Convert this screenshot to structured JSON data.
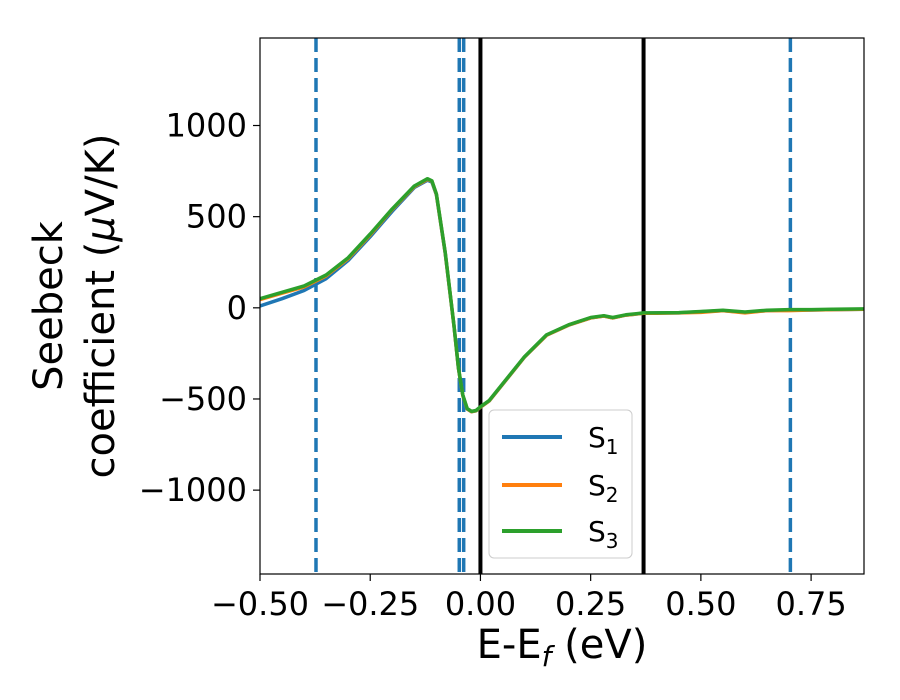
{
  "chart_data": {
    "type": "line",
    "title": "",
    "xlabel": {
      "main": "E-E",
      "sub": "f",
      "tail": " (eV)"
    },
    "ylabel": {
      "line1": "Seebeck",
      "line2a": "coefficient  (",
      "mu": "μ",
      "line2b": "V/K)"
    },
    "xlim": [
      -0.5,
      0.87
    ],
    "ylim": [
      -1460,
      1480
    ],
    "xticks": [
      {
        "value": -0.5,
        "label": "−0.50"
      },
      {
        "value": -0.25,
        "label": "−0.25"
      },
      {
        "value": 0.0,
        "label": "0.00"
      },
      {
        "value": 0.25,
        "label": "0.25"
      },
      {
        "value": 0.5,
        "label": "0.50"
      },
      {
        "value": 0.75,
        "label": "0.75"
      }
    ],
    "yticks": [
      {
        "value": 1000,
        "label": "1000"
      },
      {
        "value": 500,
        "label": "500"
      },
      {
        "value": 0,
        "label": "0"
      },
      {
        "value": -500,
        "label": "−500"
      },
      {
        "value": -1000,
        "label": "−1000"
      }
    ],
    "grid": false,
    "legend_position": "lower-center",
    "vlines_dashed": {
      "x": [
        -0.373,
        -0.048,
        -0.038,
        0.703
      ],
      "color": "#1f77b4"
    },
    "vlines_solid": {
      "x": [
        0.0,
        0.37
      ],
      "color": "#000000"
    },
    "series": [
      {
        "name": "S",
        "sub": "1",
        "color": "#1f77b4",
        "x": [
          -0.5,
          -0.45,
          -0.4,
          -0.35,
          -0.3,
          -0.25,
          -0.2,
          -0.15,
          -0.12,
          -0.11,
          -0.1,
          -0.08,
          -0.06,
          -0.05,
          -0.04,
          -0.03,
          -0.02,
          -0.01,
          0.0,
          0.02,
          0.05,
          0.1,
          0.15,
          0.2,
          0.25,
          0.28,
          0.3,
          0.33,
          0.37,
          0.4,
          0.45,
          0.5,
          0.55,
          0.6,
          0.65,
          0.7,
          0.75,
          0.8,
          0.87
        ],
        "y": [
          10,
          50,
          95,
          160,
          260,
          390,
          530,
          660,
          700,
          690,
          620,
          300,
          -100,
          -330,
          -480,
          -555,
          -570,
          -565,
          -545,
          -510,
          -420,
          -270,
          -150,
          -95,
          -55,
          -45,
          -55,
          -40,
          -30,
          -28,
          -28,
          -22,
          -15,
          -25,
          -15,
          -12,
          -12,
          -10,
          -8
        ]
      },
      {
        "name": "S",
        "sub": "2",
        "color": "#ff7f0e",
        "x": [
          -0.5,
          -0.45,
          -0.4,
          -0.35,
          -0.3,
          -0.25,
          -0.2,
          -0.15,
          -0.12,
          -0.11,
          -0.1,
          -0.08,
          -0.06,
          -0.05,
          -0.04,
          -0.03,
          -0.02,
          -0.01,
          0.0,
          0.02,
          0.05,
          0.1,
          0.15,
          0.2,
          0.25,
          0.28,
          0.3,
          0.33,
          0.37,
          0.4,
          0.45,
          0.5,
          0.55,
          0.6,
          0.65,
          0.7,
          0.75,
          0.8,
          0.87
        ],
        "y": [
          45,
          80,
          115,
          175,
          270,
          400,
          540,
          665,
          705,
          695,
          622,
          302,
          -100,
          -330,
          -480,
          -555,
          -570,
          -565,
          -545,
          -510,
          -420,
          -270,
          -150,
          -95,
          -55,
          -45,
          -55,
          -40,
          -30,
          -30,
          -28,
          -25,
          -15,
          -28,
          -15,
          -15,
          -12,
          -10,
          -8
        ]
      },
      {
        "name": "S",
        "sub": "3",
        "color": "#2ca02c",
        "x": [
          -0.5,
          -0.45,
          -0.4,
          -0.35,
          -0.3,
          -0.25,
          -0.2,
          -0.15,
          -0.12,
          -0.11,
          -0.1,
          -0.08,
          -0.06,
          -0.05,
          -0.04,
          -0.03,
          -0.02,
          -0.01,
          0.0,
          0.02,
          0.05,
          0.1,
          0.15,
          0.2,
          0.25,
          0.28,
          0.3,
          0.33,
          0.37,
          0.4,
          0.45,
          0.5,
          0.55,
          0.6,
          0.65,
          0.7,
          0.75,
          0.8,
          0.87
        ],
        "y": [
          50,
          85,
          120,
          180,
          275,
          405,
          543,
          668,
          708,
          697,
          625,
          305,
          -98,
          -328,
          -478,
          -553,
          -568,
          -563,
          -543,
          -508,
          -418,
          -268,
          -148,
          -93,
          -53,
          -43,
          -53,
          -38,
          -28,
          -28,
          -26,
          -20,
          -13,
          -23,
          -13,
          -10,
          -10,
          -8,
          -6
        ]
      }
    ]
  }
}
